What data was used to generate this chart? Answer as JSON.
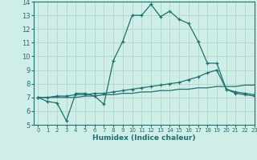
{
  "title": "",
  "xlabel": "Humidex (Indice chaleur)",
  "ylabel": "",
  "xlim": [
    -0.5,
    23
  ],
  "ylim": [
    5,
    14
  ],
  "xticks": [
    0,
    1,
    2,
    3,
    4,
    5,
    6,
    7,
    8,
    9,
    10,
    11,
    12,
    13,
    14,
    15,
    16,
    17,
    18,
    19,
    20,
    21,
    22,
    23
  ],
  "yticks": [
    5,
    6,
    7,
    8,
    9,
    10,
    11,
    12,
    13,
    14
  ],
  "bg_color": "#d0eee8",
  "grid_color": "#b0d8cc",
  "line_color": "#1e7070",
  "line1_x": [
    0,
    1,
    2,
    3,
    4,
    5,
    6,
    7,
    8,
    9,
    10,
    11,
    12,
    13,
    14,
    15,
    16,
    17,
    18,
    19,
    20,
    21,
    22,
    23
  ],
  "line1_y": [
    7.0,
    6.7,
    6.6,
    5.3,
    7.3,
    7.3,
    7.1,
    6.5,
    9.7,
    11.1,
    13.0,
    13.0,
    13.8,
    12.9,
    13.3,
    12.7,
    12.4,
    11.1,
    9.5,
    9.5,
    7.6,
    7.3,
    7.2,
    7.1
  ],
  "line2_x": [
    0,
    1,
    2,
    3,
    4,
    5,
    6,
    7,
    8,
    9,
    10,
    11,
    12,
    13,
    14,
    15,
    16,
    17,
    18,
    19,
    20,
    21,
    22,
    23
  ],
  "line2_y": [
    7.0,
    7.0,
    7.1,
    7.1,
    7.2,
    7.2,
    7.3,
    7.3,
    7.4,
    7.5,
    7.6,
    7.7,
    7.8,
    7.9,
    8.0,
    8.1,
    8.3,
    8.5,
    8.8,
    9.0,
    7.6,
    7.4,
    7.3,
    7.2
  ],
  "line3_x": [
    0,
    1,
    2,
    3,
    4,
    5,
    6,
    7,
    8,
    9,
    10,
    11,
    12,
    13,
    14,
    15,
    16,
    17,
    18,
    19,
    20,
    21,
    22,
    23
  ],
  "line3_y": [
    7.0,
    7.0,
    7.0,
    7.0,
    7.0,
    7.1,
    7.1,
    7.2,
    7.2,
    7.3,
    7.3,
    7.4,
    7.4,
    7.5,
    7.5,
    7.6,
    7.6,
    7.7,
    7.7,
    7.8,
    7.8,
    7.8,
    7.9,
    7.9
  ]
}
